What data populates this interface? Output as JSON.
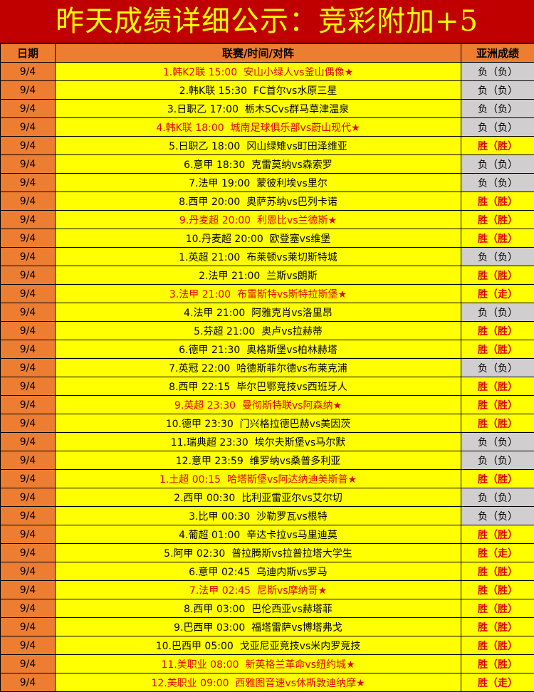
{
  "title": "昨天成绩详细公示：竞彩附加+5",
  "headers": {
    "date": "日期",
    "match": "联赛/时间/对阵",
    "result": "亚洲成绩"
  },
  "colors": {
    "title_bg": "#C00000",
    "title_text": "#FFFF00",
    "header_bg": "#ED7D31",
    "row_bg": "#FFFF00",
    "lose_bg": "#D0CECE",
    "highlight_text": "#E00000"
  },
  "rows": [
    {
      "date": "9/4",
      "match": "1.韩K2联 15:00  安山小绿人vs釜山偶像★",
      "highlight": true,
      "result": "负（负）",
      "win": false
    },
    {
      "date": "9/4",
      "match": "2.韩K联 15:30  FC首尔vs水原三星",
      "highlight": false,
      "result": "负（负）",
      "win": false
    },
    {
      "date": "9/4",
      "match": "3.日职乙 17:00  栃木SCvs群马草津温泉",
      "highlight": false,
      "result": "负（负）",
      "win": false
    },
    {
      "date": "9/4",
      "match": "4.韩K联 18:00  城南足球俱乐部vs蔚山现代★",
      "highlight": true,
      "result": "负（负）",
      "win": false
    },
    {
      "date": "9/4",
      "match": "5.日职乙 18:00  冈山绿雉vs町田泽维亚",
      "highlight": false,
      "result": "胜（胜）",
      "win": true
    },
    {
      "date": "9/4",
      "match": "6.意甲 18:30  克雷莫纳vs森索罗",
      "highlight": false,
      "result": "负（负）",
      "win": false
    },
    {
      "date": "9/4",
      "match": "7.法甲 19:00  蒙彼利埃vs里尔",
      "highlight": false,
      "result": "负（负）",
      "win": false
    },
    {
      "date": "9/4",
      "match": "8.西甲 20:00  奥萨苏纳vs巴列卡诺",
      "highlight": false,
      "result": "胜（胜）",
      "win": true
    },
    {
      "date": "9/4",
      "match": "9.丹麦超 20:00  利恩比vs兰德斯★",
      "highlight": true,
      "result": "胜（胜）",
      "win": true
    },
    {
      "date": "9/4",
      "match": "10.丹麦超 20:00  欧登塞vs维堡",
      "highlight": false,
      "result": "胜（胜）",
      "win": true
    },
    {
      "date": "9/4",
      "match": "1.英超 21:00  布莱顿vs莱切斯特城",
      "highlight": false,
      "result": "负（负）",
      "win": false
    },
    {
      "date": "9/4",
      "match": "2.法甲 21:00  兰斯vs朗斯",
      "highlight": false,
      "result": "胜（胜）",
      "win": true
    },
    {
      "date": "9/4",
      "match": "3.法甲 21:00  布雷斯特vs斯特拉斯堡★",
      "highlight": true,
      "result": "胜（走）",
      "win": true
    },
    {
      "date": "9/4",
      "match": "4.法甲 21:00  阿雅克肖vs洛里昂",
      "highlight": false,
      "result": "负（负）",
      "win": false
    },
    {
      "date": "9/4",
      "match": "5.芬超 21:00  奥卢vs拉赫蒂",
      "highlight": false,
      "result": "胜（胜）",
      "win": true
    },
    {
      "date": "9/4",
      "match": "6.德甲 21:30  奥格斯堡vs柏林赫塔",
      "highlight": false,
      "result": "胜（胜）",
      "win": true
    },
    {
      "date": "9/4",
      "match": "7.英冠 22:00  哈德斯菲尔德vs布莱克浦",
      "highlight": false,
      "result": "负（负）",
      "win": false
    },
    {
      "date": "9/4",
      "match": "8.西甲 22:15  毕尔巴鄂竞技vs西班牙人",
      "highlight": false,
      "result": "胜（胜）",
      "win": true
    },
    {
      "date": "9/4",
      "match": "9.英超 23:30  曼彻斯特联vs阿森纳★",
      "highlight": true,
      "result": "胜（胜）",
      "win": true
    },
    {
      "date": "9/4",
      "match": "10.德甲 23:30  门兴格拉德巴赫vs美因茨",
      "highlight": false,
      "result": "胜（胜）",
      "win": true
    },
    {
      "date": "9/4",
      "match": "11.瑞典超 23:30  埃尔夫斯堡vs马尔默",
      "highlight": false,
      "result": "负（负）",
      "win": false
    },
    {
      "date": "9/4",
      "match": "12.意甲 23:59  维罗纳vs桑普多利亚",
      "highlight": false,
      "result": "负（负）",
      "win": false
    },
    {
      "date": "9/4",
      "match": "1.土超 00:15  哈塔斯堡vs阿达纳迪美斯普★",
      "highlight": true,
      "result": "胜（胜）",
      "win": true
    },
    {
      "date": "9/4",
      "match": "2.西甲 00:30  比利亚雷亚尔vs艾尔切",
      "highlight": false,
      "result": "负（负）",
      "win": false
    },
    {
      "date": "9/4",
      "match": "3.比甲 00:30  沙勒罗瓦vs根特",
      "highlight": false,
      "result": "负（负）",
      "win": false
    },
    {
      "date": "9/4",
      "match": "4.葡超 01:00  辛达卡拉vs马里迪莫",
      "highlight": false,
      "result": "胜（胜）",
      "win": true
    },
    {
      "date": "9/4",
      "match": "5.阿甲 02:30  普拉腾斯vs拉普拉塔大学生",
      "highlight": false,
      "result": "胜（走）",
      "win": true
    },
    {
      "date": "9/4",
      "match": "6.意甲 02:45  乌迪内斯vs罗马",
      "highlight": false,
      "result": "胜（胜）",
      "win": true
    },
    {
      "date": "9/4",
      "match": "7.法甲 02:45  尼斯vs摩纳哥★",
      "highlight": true,
      "result": "胜（胜）",
      "win": true
    },
    {
      "date": "9/4",
      "match": "8.西甲 03:00  巴伦西亚vs赫塔菲",
      "highlight": false,
      "result": "胜（胜）",
      "win": true
    },
    {
      "date": "9/4",
      "match": "9.巴西甲 03:00  福塔雷萨vs博塔弗戈",
      "highlight": false,
      "result": "胜（胜）",
      "win": true
    },
    {
      "date": "9/4",
      "match": "10.巴西甲 05:00  戈亚尼亚竞技vs米内罗竞技",
      "highlight": false,
      "result": "胜（胜）",
      "win": true
    },
    {
      "date": "9/4",
      "match": "11.美职业 08:00  新英格兰革命vs纽约城★",
      "highlight": true,
      "result": "胜（胜）",
      "win": true
    },
    {
      "date": "9/4",
      "match": "12.美职业 09:00  西雅图音速vs休斯敦迪纳摩★",
      "highlight": true,
      "result": "胜（走）",
      "win": true
    }
  ]
}
